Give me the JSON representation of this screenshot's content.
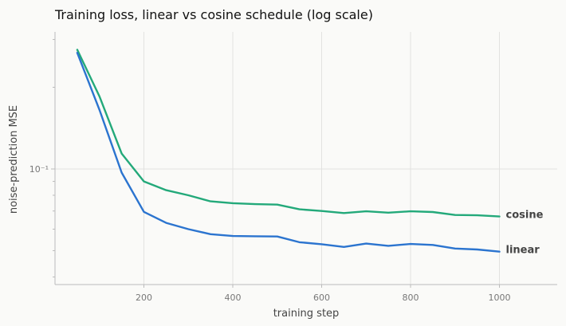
{
  "chart_data": {
    "type": "line",
    "title": "Training loss, linear vs cosine schedule (log scale)",
    "xlabel": "training step",
    "ylabel": "noise-prediction MSE",
    "xlim": [
      0,
      1130
    ],
    "ylim": [
      0.0375,
      0.32
    ],
    "yscale": "log",
    "x_ticks": [
      200,
      400,
      600,
      800,
      1000
    ],
    "y_ticks": [
      {
        "value": 0.1,
        "label": "10⁻¹"
      }
    ],
    "grid": true,
    "legend": "none (series labeled at line ends)",
    "x": [
      50,
      100,
      150,
      200,
      250,
      300,
      350,
      400,
      450,
      500,
      550,
      600,
      650,
      700,
      750,
      800,
      850,
      900,
      950,
      1000
    ],
    "series": [
      {
        "name": "cosine",
        "color": "#23a97a",
        "values": [
          0.275,
          0.185,
          0.114,
          0.09,
          0.0835,
          0.08,
          0.076,
          0.0748,
          0.0742,
          0.0739,
          0.071,
          0.07,
          0.0688,
          0.0698,
          0.069,
          0.0698,
          0.0694,
          0.0677,
          0.0675,
          0.0668
        ]
      },
      {
        "name": "linear",
        "color": "#2b74cf",
        "values": [
          0.268,
          0.165,
          0.097,
          0.0695,
          0.0633,
          0.06,
          0.0575,
          0.0566,
          0.0565,
          0.0564,
          0.0537,
          0.0528,
          0.0516,
          0.0531,
          0.0521,
          0.0529,
          0.0525,
          0.0509,
          0.0505,
          0.0496
        ]
      }
    ]
  }
}
